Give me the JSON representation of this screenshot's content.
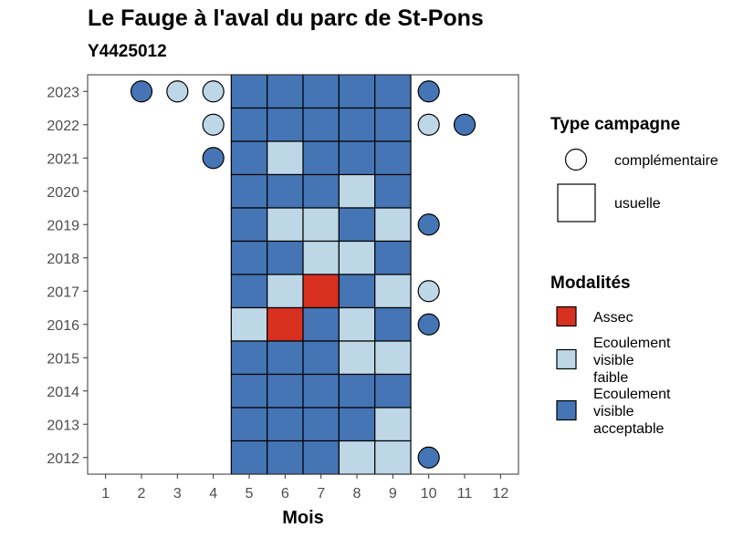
{
  "chart_data": {
    "type": "heatmap",
    "title": "Le Fauge à l'aval du parc de St-Pons",
    "subtitle": "Y4425012",
    "xlabel": "Mois",
    "ylabel": "",
    "x_ticks": [
      "1",
      "2",
      "3",
      "4",
      "5",
      "6",
      "7",
      "8",
      "9",
      "10",
      "11",
      "12"
    ],
    "y_ticks": [
      "2023",
      "2022",
      "2021",
      "2020",
      "2019",
      "2018",
      "2017",
      "2016",
      "2015",
      "2014",
      "2013",
      "2012"
    ],
    "colors": {
      "assec": "#d7301f",
      "faible": "#bdd7e7",
      "acceptable": "#4575b4"
    },
    "legend_campaign": {
      "title": "Type campagne",
      "items": [
        {
          "label": "complémentaire",
          "shape": "circle"
        },
        {
          "label": "usuelle",
          "shape": "square"
        }
      ]
    },
    "legend_modalites": {
      "title": "Modalités",
      "items": [
        {
          "key": "assec",
          "lines": [
            "Assec"
          ]
        },
        {
          "key": "faible",
          "lines": [
            "Ecoulement",
            "visible",
            "faible"
          ]
        },
        {
          "key": "acceptable",
          "lines": [
            "Ecoulement",
            "visible",
            "acceptable"
          ]
        }
      ]
    },
    "usual": [
      {
        "year": "2023",
        "values": [
          "acceptable",
          "acceptable",
          "acceptable",
          "acceptable",
          "acceptable"
        ]
      },
      {
        "year": "2022",
        "values": [
          "acceptable",
          "acceptable",
          "acceptable",
          "acceptable",
          "acceptable"
        ]
      },
      {
        "year": "2021",
        "values": [
          "acceptable",
          "faible",
          "acceptable",
          "acceptable",
          "acceptable"
        ]
      },
      {
        "year": "2020",
        "values": [
          "acceptable",
          "acceptable",
          "acceptable",
          "faible",
          "acceptable"
        ]
      },
      {
        "year": "2019",
        "values": [
          "acceptable",
          "faible",
          "faible",
          "acceptable",
          "faible"
        ]
      },
      {
        "year": "2018",
        "values": [
          "acceptable",
          "acceptable",
          "faible",
          "faible",
          "acceptable"
        ]
      },
      {
        "year": "2017",
        "values": [
          "acceptable",
          "faible",
          "assec",
          "acceptable",
          "faible"
        ]
      },
      {
        "year": "2016",
        "values": [
          "faible",
          "assec",
          "acceptable",
          "faible",
          "acceptable"
        ]
      },
      {
        "year": "2015",
        "values": [
          "acceptable",
          "acceptable",
          "acceptable",
          "faible",
          "faible"
        ]
      },
      {
        "year": "2014",
        "values": [
          "acceptable",
          "acceptable",
          "acceptable",
          "acceptable",
          "acceptable"
        ]
      },
      {
        "year": "2013",
        "values": [
          "acceptable",
          "acceptable",
          "acceptable",
          "acceptable",
          "faible"
        ]
      },
      {
        "year": "2012",
        "values": [
          "acceptable",
          "acceptable",
          "acceptable",
          "faible",
          "faible"
        ]
      }
    ],
    "usual_months": [
      5,
      6,
      7,
      8,
      9
    ],
    "complementary": [
      {
        "year": "2023",
        "month": 2,
        "value": "acceptable"
      },
      {
        "year": "2023",
        "month": 3,
        "value": "faible"
      },
      {
        "year": "2023",
        "month": 4,
        "value": "faible"
      },
      {
        "year": "2023",
        "month": 10,
        "value": "acceptable"
      },
      {
        "year": "2022",
        "month": 4,
        "value": "faible"
      },
      {
        "year": "2022",
        "month": 10,
        "value": "faible"
      },
      {
        "year": "2022",
        "month": 11,
        "value": "acceptable"
      },
      {
        "year": "2021",
        "month": 4,
        "value": "acceptable"
      },
      {
        "year": "2019",
        "month": 10,
        "value": "acceptable"
      },
      {
        "year": "2017",
        "month": 10,
        "value": "faible"
      },
      {
        "year": "2016",
        "month": 10,
        "value": "acceptable"
      },
      {
        "year": "2012",
        "month": 10,
        "value": "acceptable"
      }
    ]
  }
}
